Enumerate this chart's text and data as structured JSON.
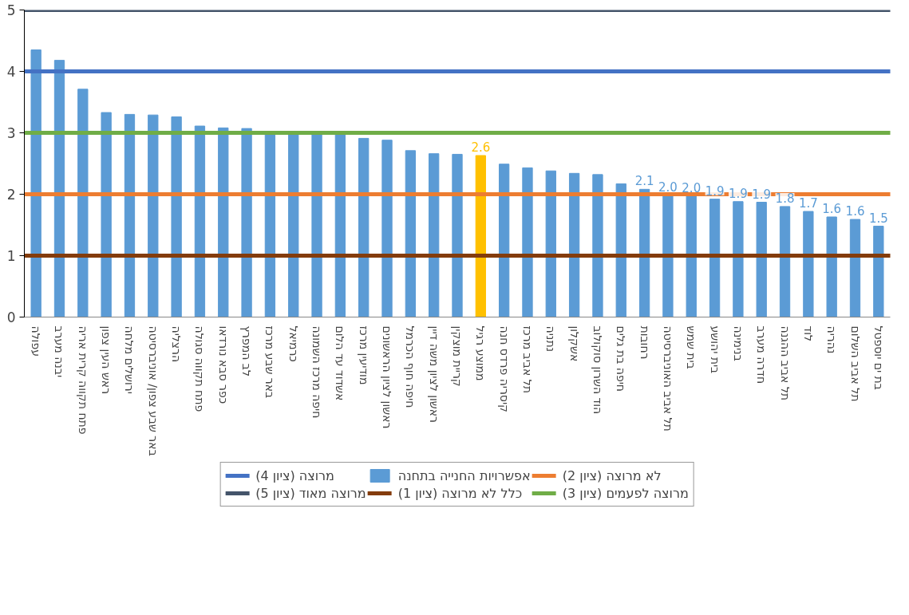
{
  "chart_data": {
    "type": "bar",
    "categories": [
      "עפולה",
      "יבנה מערב",
      "פתח תקווה קרית אריה",
      "ראש העין צפון",
      "ירושלים מלחה",
      "באר שבע צפון/ אוניברסיטה",
      "הרצליה",
      "פתח תקווה סגולה",
      "כפר סבא נורדאו",
      "לב המפרץ",
      "באר שבע מרכז",
      "כרמיאל",
      "חיפה מרכז השמונה",
      "אשדוד עד הלום",
      "מודיעין מרכז",
      "ראשון לציון הראשונים",
      "חיפה חוף הכרמל",
      "ראשון לציון משה דיין",
      "קריית מוצקין",
      "ממוצע רגיל",
      "קיסריה פרדס חנה",
      "תל אביב מרכז",
      "נתניה",
      "אשקלון",
      "הוד השרון סוקולוב",
      "חיפה בת גלים",
      "רחובות",
      "תל אביב האוניברסיטה",
      "בית שמש",
      "בית יהושע",
      "בנימינה",
      "חדרה מערב",
      "תל אביב ההגנה",
      "לוד",
      "נהריה",
      "תל אביב השלום",
      "בת ים יוספטל"
    ],
    "series": [
      {
        "name": "אפשרויות החנייה בתחנה",
        "color": "#5b9bd5",
        "colors": [
          "#5b9bd5",
          "#5b9bd5",
          "#5b9bd5",
          "#5b9bd5",
          "#5b9bd5",
          "#5b9bd5",
          "#5b9bd5",
          "#5b9bd5",
          "#5b9bd5",
          "#5b9bd5",
          "#5b9bd5",
          "#5b9bd5",
          "#5b9bd5",
          "#5b9bd5",
          "#5b9bd5",
          "#5b9bd5",
          "#5b9bd5",
          "#5b9bd5",
          "#5b9bd5",
          "#ffc000",
          "#5b9bd5",
          "#5b9bd5",
          "#5b9bd5",
          "#5b9bd5",
          "#5b9bd5",
          "#5b9bd5",
          "#5b9bd5",
          "#5b9bd5",
          "#5b9bd5",
          "#5b9bd5",
          "#5b9bd5",
          "#5b9bd5",
          "#5b9bd5",
          "#5b9bd5",
          "#5b9bd5",
          "#5b9bd5",
          "#5b9bd5"
        ],
        "values": [
          4.35,
          4.18,
          3.71,
          3.33,
          3.3,
          3.29,
          3.26,
          3.11,
          3.08,
          3.07,
          3.0,
          3.0,
          3.0,
          3.0,
          2.91,
          2.88,
          2.71,
          2.66,
          2.65,
          2.63,
          2.49,
          2.43,
          2.38,
          2.34,
          2.32,
          2.17,
          2.08,
          1.98,
          1.97,
          1.92,
          1.88,
          1.87,
          1.8,
          1.72,
          1.63,
          1.59,
          1.48
        ],
        "value_labels": [
          null,
          null,
          null,
          null,
          null,
          null,
          null,
          null,
          null,
          null,
          null,
          null,
          null,
          null,
          null,
          null,
          null,
          null,
          null,
          "2.6",
          null,
          null,
          null,
          null,
          null,
          null,
          "2.1",
          "2.0",
          "2.0",
          "1.9",
          "1.9",
          "1.9",
          "1.8",
          "1.7",
          "1.6",
          "1.6",
          "1.5"
        ]
      }
    ],
    "ref_lines": [
      {
        "axis": "y",
        "value": 5,
        "label": "מרוצה מאוד (ציון 5)",
        "color": "#44546a"
      },
      {
        "axis": "y",
        "value": 4,
        "label": "מרוצה (ציון 4)",
        "color": "#4472c4"
      },
      {
        "axis": "y",
        "value": 3,
        "label": "מרוצה לפעמים (ציון 3)",
        "color": "#70ad47"
      },
      {
        "axis": "y",
        "value": 2,
        "label": "לא מרוצה (ציון 2)",
        "color": "#ed7d31"
      },
      {
        "axis": "y",
        "value": 1,
        "label": "כלל לא מרוצה (ציון 1)",
        "color": "#843c0c"
      }
    ],
    "ylim": [
      0,
      5
    ],
    "yticks": [
      0,
      1,
      2,
      3,
      4,
      5
    ],
    "grid": false,
    "legend": "bottom"
  }
}
